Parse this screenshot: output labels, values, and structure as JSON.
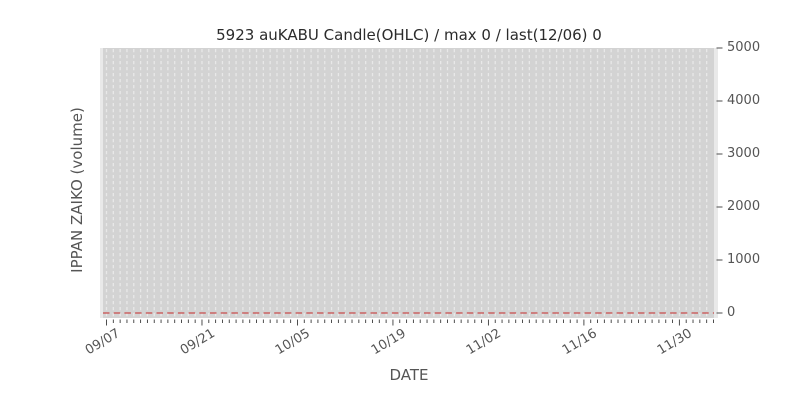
{
  "chart_data": {
    "type": "line",
    "title": "5923 auKABU Candle(OHLC) / max 0 / last(12/06) 0",
    "xlabel": "DATE",
    "ylabel": "IPPAN ZAIKO (volume)",
    "x_tick_labels": [
      "09/07",
      "09/21",
      "10/05",
      "10/19",
      "11/02",
      "11/16",
      "11/30"
    ],
    "x_range": {
      "start": "09/07",
      "end": "12/06",
      "num_days": 91,
      "major_tick_every_days": 14,
      "minor_tick_every_days": 1
    },
    "y_ticks": [
      "0",
      "1000",
      "2000",
      "3000",
      "4000",
      "5000"
    ],
    "ylim": [
      -100,
      5000
    ],
    "y_axis_side": "right",
    "grid": {
      "vertical": "dashed-daily",
      "horizontal": "none"
    },
    "legend": "none",
    "annotations": {
      "max": 0,
      "last_date": "12/06",
      "last_value": 0
    },
    "series": [
      {
        "name": "IPPAN ZAIKO (volume)",
        "style": "dashed",
        "color": "#c84c4c",
        "constant_value": 0,
        "note": "flat at 0 for every day from 09/07 to 12/06 (max 0, last(12/06) 0)"
      }
    ],
    "colors": {
      "plot_band_fill": "#d3d3d3",
      "plot_margin_fill": "#e9e9e9",
      "grid_dash": "#e8e8e8",
      "tick_marks": "#3a3a3a",
      "tick_label_text": "#555555",
      "title_text": "#2b2b2b",
      "background": "#ffffff"
    }
  }
}
